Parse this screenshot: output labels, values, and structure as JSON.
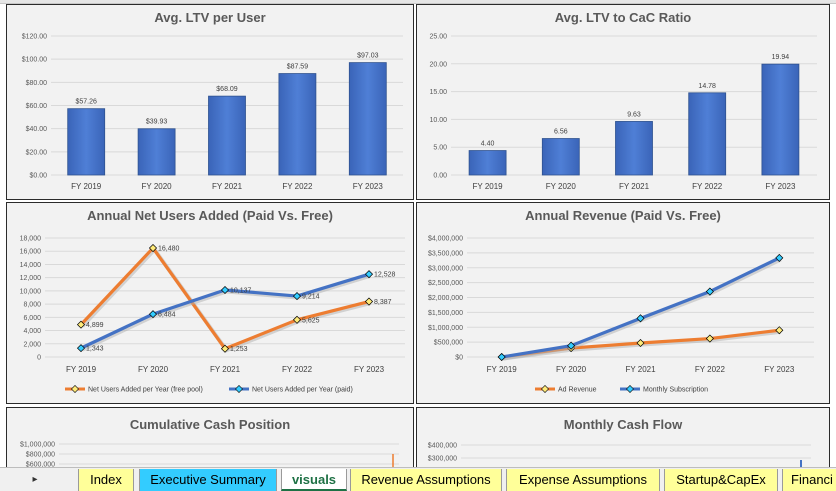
{
  "colors": {
    "bar_blue": "#4472c4",
    "line_orange": "#ed7d31",
    "line_blue": "#4472c4",
    "tab_yellow": "#ffff99",
    "tab_cyan": "#33ccff"
  },
  "charts": {
    "ltv_per_user": {
      "title": "Avg. LTV per User",
      "y_ticks": [
        "$120.00",
        "$100.00",
        "$80.00",
        "$60.00",
        "$40.00",
        "$20.00",
        "$0.00"
      ]
    },
    "ltv_cac": {
      "title": "Avg. LTV to CaC Ratio",
      "y_ticks": [
        "25.00",
        "20.00",
        "15.00",
        "10.00",
        "5.00",
        "0.00"
      ]
    },
    "net_users": {
      "title": "Annual Net Users Added (Paid Vs. Free)",
      "y_ticks": [
        "18,000",
        "16,000",
        "14,000",
        "12,000",
        "10,000",
        "8,000",
        "6,000",
        "4,000",
        "2,000",
        "0"
      ],
      "legend": [
        "Net Users Added per Year (free pool)",
        "Net Users Added per Year (paid)"
      ]
    },
    "annual_revenue": {
      "title": "Annual Revenue (Paid Vs. Free)",
      "y_ticks": [
        "$4,000,000",
        "$3,500,000",
        "$3,000,000",
        "$2,500,000",
        "$2,000,000",
        "$1,500,000",
        "$1,000,000",
        "$500,000",
        "$0"
      ],
      "legend": [
        "Ad Revenue",
        "Monthly Subscription"
      ]
    },
    "cumulative_cash": {
      "title": "Cumulative Cash Position",
      "y_ticks": [
        "$1,000,000",
        "$800,000",
        "$600,000"
      ]
    },
    "monthly_cash": {
      "title": "Monthly Cash Flow",
      "y_ticks": [
        "$400,000",
        "$300,000"
      ]
    }
  },
  "chart_data": [
    {
      "type": "bar",
      "title": "Avg. LTV per User",
      "categories": [
        "FY 2019",
        "FY 2020",
        "FY 2021",
        "FY 2022",
        "FY 2023"
      ],
      "values": [
        57.26,
        39.93,
        68.09,
        87.59,
        97.03
      ],
      "data_labels": [
        "$57.26",
        "$39.93",
        "$68.09",
        "$87.59",
        "$97.03"
      ],
      "ylim": [
        0,
        120
      ],
      "grid": true
    },
    {
      "type": "bar",
      "title": "Avg. LTV to CaC Ratio",
      "categories": [
        "FY 2019",
        "FY 2020",
        "FY 2021",
        "FY 2022",
        "FY 2023"
      ],
      "values": [
        4.4,
        6.56,
        9.63,
        14.78,
        19.94
      ],
      "data_labels": [
        "4.40",
        "6.56",
        "9.63",
        "14.78",
        "19.94"
      ],
      "ylim": [
        0,
        25
      ],
      "grid": true
    },
    {
      "type": "line",
      "title": "Annual Net Users Added (Paid Vs. Free)",
      "categories": [
        "FY 2019",
        "FY 2020",
        "FY 2021",
        "FY 2022",
        "FY 2023"
      ],
      "series": [
        {
          "name": "Net Users Added per Year (free pool)",
          "values": [
            4899,
            16480,
            1253,
            5625,
            8387
          ],
          "labels": [
            "4,899",
            "16,480",
            "1,253",
            "5,625",
            "8,387"
          ]
        },
        {
          "name": "Net Users Added per Year (paid)",
          "values": [
            1343,
            6484,
            10137,
            9214,
            12528
          ],
          "labels": [
            "1,343",
            "6,484",
            "10,137",
            "9,214",
            "12,528"
          ]
        }
      ],
      "ylim": [
        0,
        18000
      ],
      "legend_position": "bottom",
      "grid": true
    },
    {
      "type": "line",
      "title": "Annual Revenue (Paid Vs. Free)",
      "categories": [
        "FY 2019",
        "FY 2020",
        "FY 2021",
        "FY 2022",
        "FY 2023"
      ],
      "series": [
        {
          "name": "Ad Revenue",
          "values": [
            0,
            300000,
            470000,
            620000,
            900000
          ]
        },
        {
          "name": "Monthly Subscription",
          "values": [
            0,
            380000,
            1300000,
            2200000,
            3330000
          ]
        }
      ],
      "ylim": [
        0,
        4000000
      ],
      "legend_position": "bottom",
      "grid": true
    }
  ],
  "tabs": [
    {
      "label": "Index",
      "bg": "#ffff99",
      "active": false
    },
    {
      "label": "Executive Summary",
      "bg": "#33ccff",
      "active": false
    },
    {
      "label": "visuals",
      "bg": "#ffffff",
      "active": true
    },
    {
      "label": "Revenue Assumptions",
      "bg": "#ffff99",
      "active": false
    },
    {
      "label": "Expense Assumptions",
      "bg": "#ffff99",
      "active": false
    },
    {
      "label": "Startup&CapEx",
      "bg": "#ffff99",
      "active": false
    },
    {
      "label": "Financi",
      "bg": "#ffff99",
      "active": false
    }
  ],
  "nav": {
    "next_arrow": "▸"
  }
}
